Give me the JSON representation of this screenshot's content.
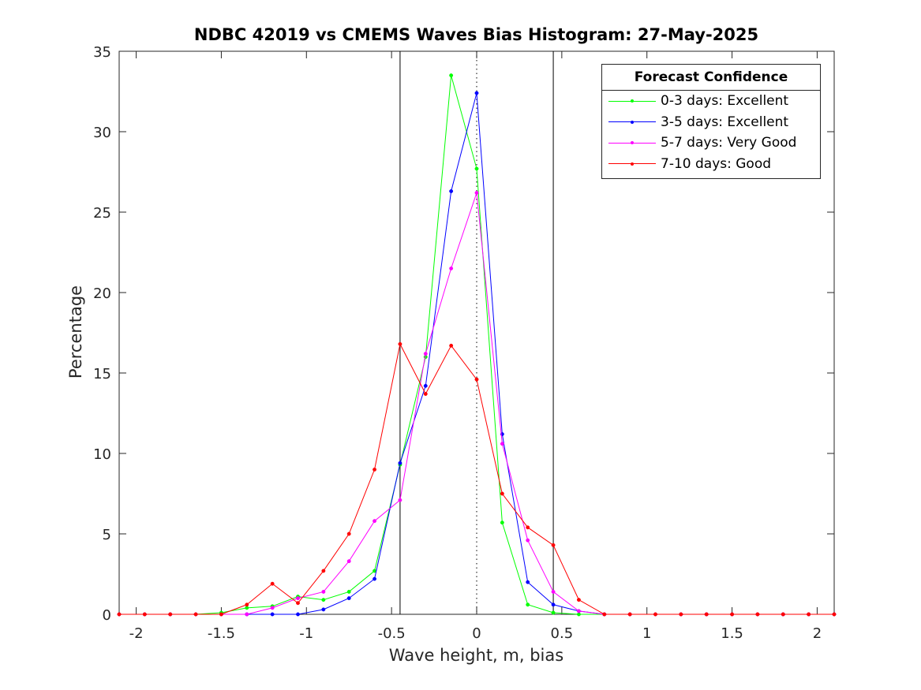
{
  "chart_data": {
    "type": "line",
    "title": "NDBC 42019 vs CMEMS Waves Bias Histogram: 27-May-2025",
    "xlabel": "Wave height, m, bias",
    "ylabel": "Percentage",
    "xlim": [
      -2.1,
      2.1
    ],
    "ylim": [
      0,
      35
    ],
    "xticks": [
      -2,
      -1.5,
      -1,
      -0.5,
      0,
      0.5,
      1,
      1.5,
      2
    ],
    "xtick_labels": [
      "-2",
      "-1.5",
      "-1",
      "-0.5",
      "0",
      "0.5",
      "1",
      "1.5",
      "2"
    ],
    "yticks": [
      0,
      5,
      10,
      15,
      20,
      25,
      30,
      35
    ],
    "ytick_labels": [
      "0",
      "5",
      "10",
      "15",
      "20",
      "25",
      "30",
      "35"
    ],
    "grid": false,
    "vertical_lines": [
      {
        "x": -0.45,
        "style": "solid",
        "color": "#000000"
      },
      {
        "x": 0.45,
        "style": "solid",
        "color": "#000000"
      },
      {
        "x": 0,
        "style": "dotted",
        "color": "#000000"
      }
    ],
    "legend": {
      "title": "Forecast Confidence",
      "position": "top-right"
    },
    "x": [
      -2.1,
      -1.95,
      -1.8,
      -1.65,
      -1.5,
      -1.35,
      -1.2,
      -1.05,
      -0.9,
      -0.75,
      -0.6,
      -0.45,
      -0.3,
      -0.15,
      0,
      0.15,
      0.3,
      0.45,
      0.6,
      0.75,
      0.9,
      1.05,
      1.2,
      1.35,
      1.5,
      1.65,
      1.8,
      1.95,
      2.1
    ],
    "series": [
      {
        "name": "0-3 days: Excellent",
        "color": "#00ff00",
        "values": [
          0,
          0,
          0,
          0,
          0.1,
          0.4,
          0.5,
          1.1,
          0.9,
          1.4,
          2.7,
          9.3,
          16.0,
          33.5,
          27.7,
          5.7,
          0.6,
          0.1,
          0,
          0,
          0,
          0,
          0,
          0,
          0,
          0,
          0,
          0,
          0
        ]
      },
      {
        "name": "3-5 days: Excellent",
        "color": "#0000ff",
        "values": [
          0,
          0,
          0,
          0,
          0,
          0,
          0,
          0,
          0.3,
          1.0,
          2.2,
          9.4,
          14.2,
          26.3,
          32.4,
          11.2,
          2.0,
          0.6,
          0.2,
          0,
          0,
          0,
          0,
          0,
          0,
          0,
          0,
          0,
          0
        ]
      },
      {
        "name": "5-7 days: Very Good",
        "color": "#ff00ff",
        "values": [
          0,
          0,
          0,
          0,
          0,
          0,
          0.4,
          1.0,
          1.4,
          3.3,
          5.8,
          7.1,
          16.2,
          21.5,
          26.2,
          10.6,
          4.6,
          1.4,
          0.2,
          0,
          0,
          0,
          0,
          0,
          0,
          0,
          0,
          0,
          0
        ]
      },
      {
        "name": "7-10 days: Good",
        "color": "#ff0000",
        "values": [
          0,
          0,
          0,
          0,
          0,
          0.6,
          1.9,
          0.7,
          2.7,
          5.0,
          9.0,
          16.8,
          13.7,
          16.7,
          14.6,
          7.5,
          5.4,
          4.3,
          0.9,
          0,
          0,
          0,
          0,
          0,
          0,
          0,
          0,
          0,
          0
        ]
      }
    ]
  }
}
